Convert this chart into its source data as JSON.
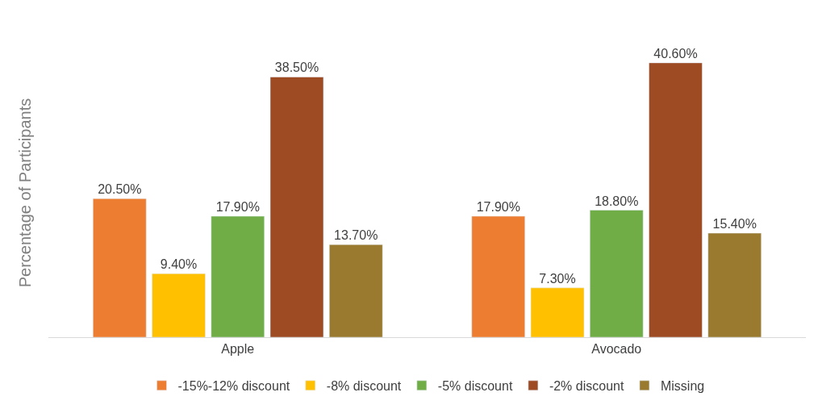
{
  "chart_data": {
    "type": "bar",
    "ylabel": "Percentage of Participants",
    "categories": [
      "Apple",
      "Avocado"
    ],
    "series": [
      {
        "name": "-15%-12% discount",
        "color": "#ed7d31",
        "values": [
          20.5,
          17.9
        ],
        "value_labels": [
          "20.50%",
          "17.90%"
        ]
      },
      {
        "name": "-8% discount",
        "color": "#ffc000",
        "values": [
          9.4,
          7.3
        ],
        "value_labels": [
          "9.40%",
          "7.30%"
        ]
      },
      {
        "name": "-5% discount",
        "color": "#70ad47",
        "values": [
          17.9,
          18.8
        ],
        "value_labels": [
          "17.90%",
          "18.80%"
        ]
      },
      {
        "name": "-2% discount",
        "color": "#9e4a22",
        "values": [
          38.5,
          40.6
        ],
        "value_labels": [
          "38.50%",
          "40.60%"
        ]
      },
      {
        "name": "Missing",
        "color": "#997a2e",
        "values": [
          13.7,
          15.4
        ],
        "value_labels": [
          "13.70%",
          "15.40%"
        ]
      }
    ],
    "legend": "bottom"
  }
}
